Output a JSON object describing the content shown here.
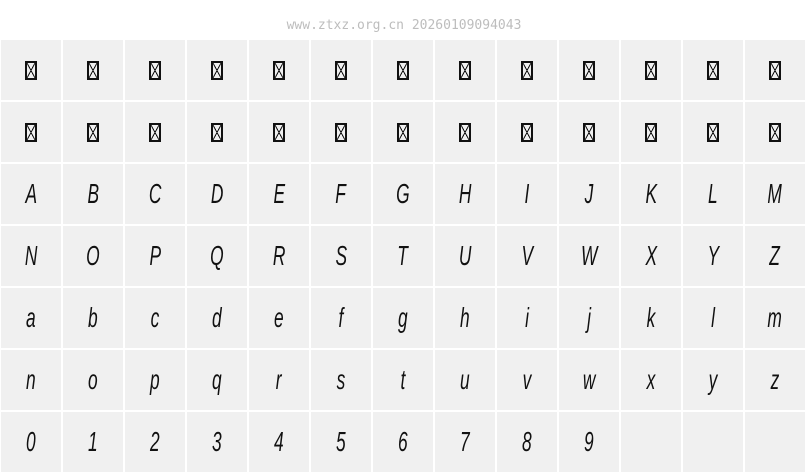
{
  "header": {
    "watermark": "www.ztxz.org.cn 20260109094043"
  },
  "colors": {
    "cell_bg": "#f0f0f0",
    "glyph": "#111111",
    "watermark": "#bdbdbd"
  },
  "rows": [
    [
      "missing-glyph",
      "missing-glyph",
      "missing-glyph",
      "missing-glyph",
      "missing-glyph",
      "missing-glyph",
      "missing-glyph",
      "missing-glyph",
      "missing-glyph",
      "missing-glyph",
      "missing-glyph",
      "missing-glyph",
      "missing-glyph"
    ],
    [
      "missing-glyph",
      "missing-glyph",
      "missing-glyph",
      "missing-glyph",
      "missing-glyph",
      "missing-glyph",
      "missing-glyph",
      "missing-glyph",
      "missing-glyph",
      "missing-glyph",
      "missing-glyph",
      "missing-glyph",
      "missing-glyph"
    ],
    [
      "A",
      "B",
      "C",
      "D",
      "E",
      "F",
      "G",
      "H",
      "I",
      "J",
      "K",
      "L",
      "M"
    ],
    [
      "N",
      "O",
      "P",
      "Q",
      "R",
      "S",
      "T",
      "U",
      "V",
      "W",
      "X",
      "Y",
      "Z"
    ],
    [
      "a",
      "b",
      "c",
      "d",
      "e",
      "f",
      "g",
      "h",
      "i",
      "j",
      "k",
      "l",
      "m"
    ],
    [
      "n",
      "o",
      "p",
      "q",
      "r",
      "s",
      "t",
      "u",
      "v",
      "w",
      "x",
      "y",
      "z"
    ],
    [
      "0",
      "1",
      "2",
      "3",
      "4",
      "5",
      "6",
      "7",
      "8",
      "9",
      "",
      "",
      ""
    ]
  ]
}
